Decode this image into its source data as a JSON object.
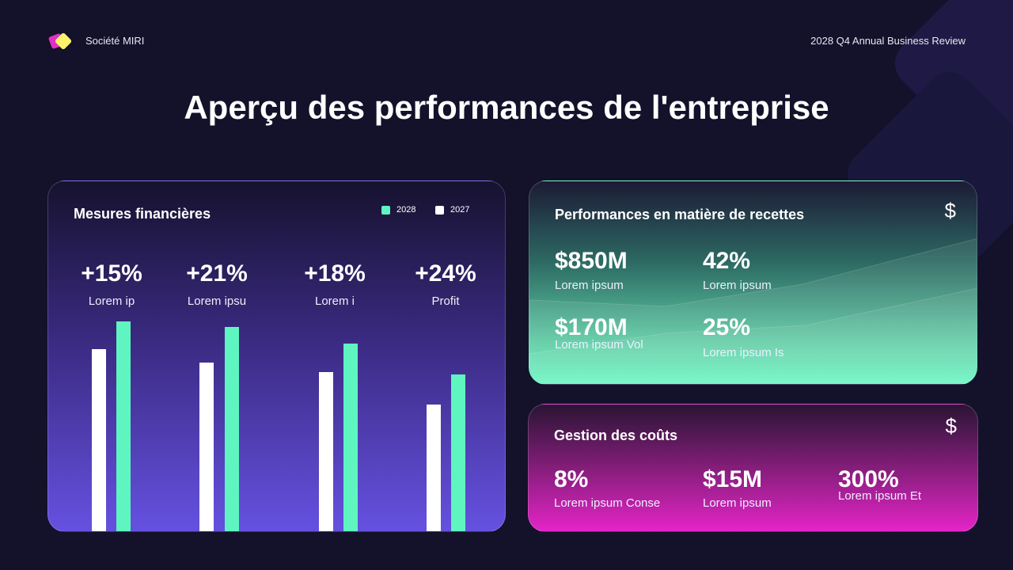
{
  "header": {
    "brand": "Société MIRI",
    "report": "2028 Q4 Annual Business Review"
  },
  "title": "Aperçu des performances de l'entreprise",
  "financial": {
    "title": "Mesures financières",
    "legend": [
      {
        "label": "2028",
        "color": "#5ff5c0"
      },
      {
        "label": "2027",
        "color": "#ffffff"
      }
    ]
  },
  "chart_data": {
    "type": "bar",
    "categories": [
      "Lorem ip",
      "Lorem ipsu",
      "Lorem i",
      "Profit"
    ],
    "data_labels": [
      "+15%",
      "+21%",
      "+18%",
      "+24%"
    ],
    "series": [
      {
        "name": "2027",
        "color": "#ffffff",
        "values": [
          230,
          213,
          201,
          160
        ]
      },
      {
        "name": "2028",
        "color": "#5ff5c0",
        "values": [
          265,
          258,
          237,
          198
        ]
      }
    ],
    "grid": false,
    "legend_position": "top-right"
  },
  "revenue": {
    "title": "Performances en matière de recettes",
    "icon": "dollar-icon",
    "icon_glyph": "$",
    "metrics": [
      {
        "value": "$850M",
        "label": "Lorem ipsum"
      },
      {
        "value": "42%",
        "label": "Lorem ipsum"
      },
      {
        "value": "$170M",
        "label": "Lorem ipsum Vol"
      },
      {
        "value": "25%",
        "label": "Lorem ipsum Is"
      }
    ]
  },
  "cost": {
    "title": "Gestion des coûts",
    "icon": "dollar-icon",
    "icon_glyph": "$",
    "metrics": [
      {
        "value": "8%",
        "label": "Lorem ipsum Conse"
      },
      {
        "value": "$15M",
        "label": "Lorem ipsum"
      },
      {
        "value": "300%",
        "label": "Lorem ipsum Et"
      }
    ]
  }
}
